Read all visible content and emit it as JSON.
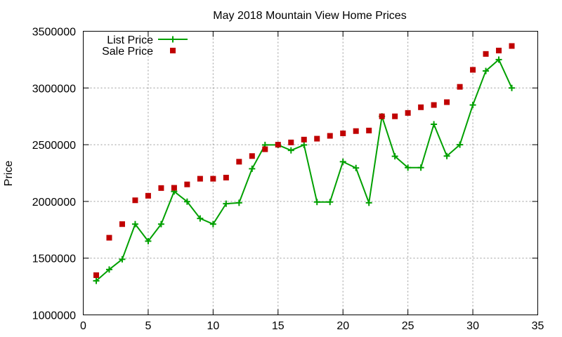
{
  "chart_data": {
    "type": "line",
    "title": "May 2018 Mountain View Home Prices",
    "xlabel": "",
    "ylabel": "Price",
    "xlim": [
      0,
      35
    ],
    "ylim": [
      1000000,
      3500000
    ],
    "xticks": [
      0,
      5,
      10,
      15,
      20,
      25,
      30,
      35
    ],
    "yticks": [
      1000000,
      1500000,
      2000000,
      2500000,
      3000000,
      3500000
    ],
    "xtick_labels": [
      "0",
      "5",
      "10",
      "15",
      "20",
      "25",
      "30",
      "35"
    ],
    "ytick_labels": [
      "1000000",
      "1500000",
      "2000000",
      "2500000",
      "3000000",
      "3500000"
    ],
    "grid": true,
    "legend_position": "top-left",
    "x": [
      1,
      2,
      3,
      4,
      5,
      6,
      7,
      8,
      9,
      10,
      11,
      12,
      13,
      14,
      15,
      16,
      17,
      18,
      19,
      20,
      21,
      22,
      23,
      24,
      25,
      26,
      27,
      28,
      29,
      30,
      31,
      32,
      33
    ],
    "series": [
      {
        "name": "List Price",
        "style": "linespoints",
        "marker": "plus",
        "color": "#00a000",
        "values": [
          1300000,
          1400000,
          1490000,
          1800000,
          1650000,
          1800000,
          2088000,
          1998000,
          1850000,
          1800000,
          1980000,
          1988000,
          2288000,
          2498000,
          2498000,
          2450000,
          2498000,
          1995000,
          1995000,
          2350000,
          2295000,
          1988000,
          2750000,
          2398000,
          2298000,
          2298000,
          2680000,
          2400000,
          2500000,
          2850000,
          3150000,
          3250000,
          3000000
        ]
      },
      {
        "name": "Sale Price",
        "style": "points",
        "marker": "square",
        "color": "#c00000",
        "values": [
          1350000,
          1680000,
          1800000,
          2010000,
          2050000,
          2118000,
          2120000,
          2150000,
          2200000,
          2200000,
          2210000,
          2350000,
          2400000,
          2460000,
          2500000,
          2520000,
          2545000,
          2553000,
          2578000,
          2600000,
          2620000,
          2625000,
          2750000,
          2750000,
          2780000,
          2830000,
          2850000,
          2875000,
          3010000,
          3160000,
          3300000,
          3330000,
          3370000
        ]
      }
    ]
  }
}
